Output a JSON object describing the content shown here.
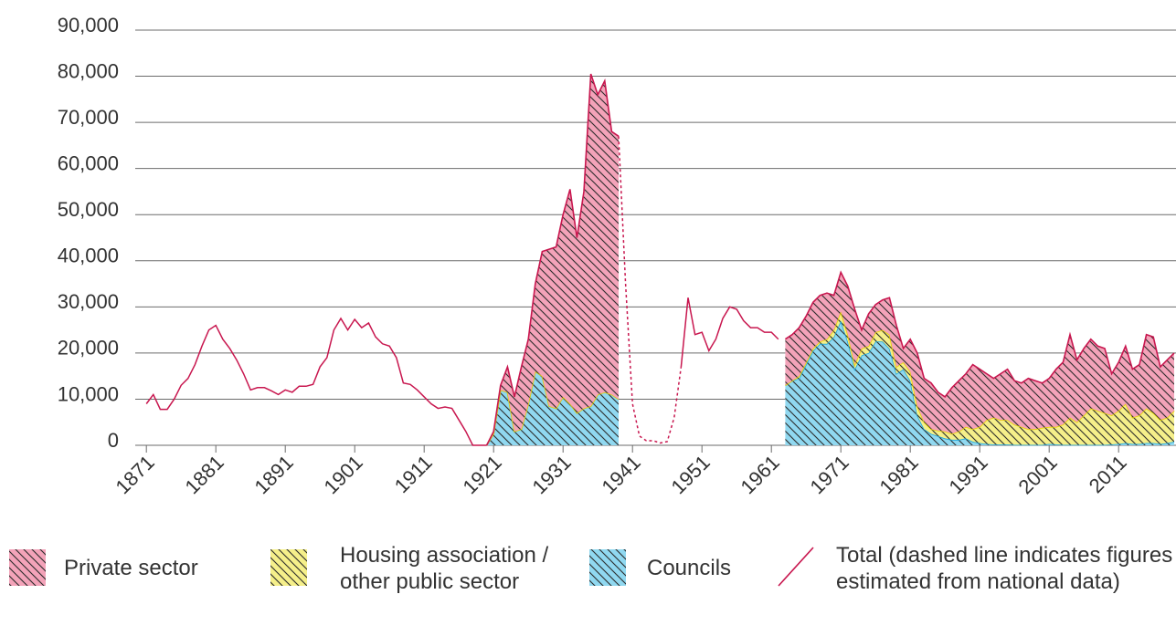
{
  "chart_data": {
    "type": "stacked-area",
    "x": [
      1871,
      1872,
      1873,
      1874,
      1875,
      1876,
      1877,
      1878,
      1879,
      1880,
      1881,
      1882,
      1883,
      1884,
      1885,
      1886,
      1887,
      1888,
      1889,
      1890,
      1891,
      1892,
      1893,
      1894,
      1895,
      1896,
      1897,
      1898,
      1899,
      1900,
      1901,
      1902,
      1903,
      1904,
      1905,
      1906,
      1907,
      1908,
      1909,
      1910,
      1911,
      1912,
      1913,
      1914,
      1915,
      1916,
      1917,
      1918,
      1919,
      1920,
      1921,
      1922,
      1923,
      1924,
      1925,
      1926,
      1927,
      1928,
      1929,
      1930,
      1931,
      1932,
      1933,
      1934,
      1935,
      1936,
      1937,
      1938,
      1939,
      1940,
      1941,
      1942,
      1943,
      1944,
      1945,
      1946,
      1947,
      1948,
      1949,
      1950,
      1951,
      1952,
      1953,
      1954,
      1955,
      1956,
      1957,
      1958,
      1959,
      1960,
      1961,
      1962,
      1963,
      1964,
      1965,
      1966,
      1967,
      1968,
      1969,
      1970,
      1971,
      1972,
      1973,
      1974,
      1975,
      1976,
      1977,
      1978,
      1979,
      1980,
      1981,
      1982,
      1983,
      1984,
      1985,
      1986,
      1987,
      1988,
      1989,
      1990,
      1991,
      1992,
      1993,
      1994,
      1995,
      1996,
      1997,
      1998,
      1999,
      2000,
      2001,
      2002,
      2003,
      2004,
      2005,
      2006,
      2007,
      2008,
      2009,
      2010,
      2011,
      2012,
      2013,
      2014,
      2015,
      2016,
      2017,
      2018,
      2019
    ],
    "series": [
      {
        "name": "Private sector",
        "type": "area",
        "color": "#f3a3b9",
        "line_color": "#c8174f",
        "values": [
          null,
          null,
          null,
          null,
          null,
          null,
          null,
          null,
          null,
          null,
          null,
          null,
          null,
          null,
          null,
          null,
          null,
          null,
          null,
          null,
          null,
          null,
          null,
          null,
          null,
          null,
          null,
          null,
          null,
          null,
          null,
          null,
          null,
          null,
          null,
          null,
          null,
          null,
          null,
          null,
          null,
          null,
          null,
          null,
          null,
          null,
          null,
          null,
          null,
          0,
          500,
          1000,
          5500,
          7500,
          13500,
          14000,
          19000,
          27000,
          34000,
          35000,
          39500,
          46500,
          38000,
          47000,
          72000,
          65000,
          67500,
          57000,
          57000,
          null,
          null,
          null,
          null,
          null,
          null,
          null,
          null,
          null,
          null,
          null,
          null,
          null,
          null,
          null,
          null,
          null,
          null,
          null,
          null,
          null,
          null,
          null,
          10000,
          10000,
          10500,
          10000,
          10000,
          10000,
          10000,
          7500,
          8500,
          10500,
          12000,
          4000,
          7000,
          6000,
          6500,
          8000,
          9000,
          3000,
          7000,
          11500,
          9500,
          10000,
          8300,
          7500,
          10000,
          11000,
          11500,
          14000,
          12500,
          10000,
          8500,
          10000,
          11000,
          9500,
          9500,
          11000,
          10500,
          9700,
          10500,
          12500,
          13500,
          18000,
          13500,
          14500,
          15000,
          14000,
          14000,
          9000,
          10500,
          12500,
          10500,
          11000,
          16000,
          16500,
          11500,
          12500,
          12500
        ]
      },
      {
        "name": "Housing association / other public sector",
        "type": "area",
        "color": "#f5ef8a",
        "line_color": "#e6d400",
        "values": [
          null,
          null,
          null,
          null,
          null,
          null,
          null,
          null,
          null,
          null,
          null,
          null,
          null,
          null,
          null,
          null,
          null,
          null,
          null,
          null,
          null,
          null,
          null,
          null,
          null,
          null,
          null,
          null,
          null,
          null,
          null,
          null,
          null,
          null,
          null,
          null,
          null,
          null,
          null,
          null,
          null,
          null,
          null,
          null,
          null,
          null,
          null,
          null,
          null,
          0,
          0,
          0,
          0,
          0,
          0,
          0,
          0,
          0,
          0,
          0,
          0,
          0,
          0,
          0,
          0,
          0,
          0,
          0,
          0,
          null,
          null,
          null,
          null,
          null,
          null,
          null,
          null,
          null,
          null,
          null,
          null,
          null,
          null,
          null,
          null,
          null,
          null,
          null,
          null,
          null,
          null,
          null,
          0,
          0,
          500,
          500,
          500,
          500,
          1000,
          1500,
          2000,
          1500,
          1000,
          1500,
          1500,
          2000,
          2500,
          3000,
          1500,
          1500,
          2000,
          2000,
          1500,
          1000,
          1200,
          1500,
          1300,
          1800,
          2500,
          2700,
          3500,
          5200,
          5800,
          5300,
          5300,
          4400,
          3900,
          3400,
          3400,
          3700,
          3700,
          3800,
          4400,
          5900,
          4900,
          6400,
          7900,
          7400,
          6900,
          6300,
          7200,
          8500,
          5700,
          6200,
          7500,
          6500,
          5200,
          5500,
          6700
        ]
      },
      {
        "name": "Councils",
        "type": "area",
        "color": "#90d8f0",
        "line_color": "#1ba6db",
        "values": [
          null,
          null,
          null,
          null,
          null,
          null,
          null,
          null,
          null,
          null,
          null,
          null,
          null,
          null,
          null,
          null,
          null,
          null,
          null,
          null,
          null,
          null,
          null,
          null,
          null,
          null,
          null,
          null,
          null,
          null,
          null,
          null,
          null,
          null,
          null,
          null,
          null,
          null,
          null,
          null,
          null,
          null,
          null,
          null,
          null,
          null,
          null,
          null,
          null,
          0,
          2500,
          12000,
          11500,
          3000,
          3500,
          9000,
          16000,
          15000,
          8500,
          8000,
          10500,
          9000,
          7000,
          8000,
          8500,
          11000,
          11500,
          11000,
          10000,
          null,
          null,
          null,
          null,
          null,
          null,
          null,
          null,
          null,
          null,
          null,
          null,
          null,
          null,
          null,
          null,
          null,
          null,
          null,
          null,
          null,
          null,
          null,
          13000,
          14000,
          14500,
          17500,
          20500,
          22000,
          22000,
          23500,
          27000,
          22500,
          16500,
          19500,
          20000,
          22500,
          22500,
          21000,
          15500,
          16500,
          14000,
          6500,
          3500,
          2500,
          2000,
          1500,
          1200,
          1200,
          1500,
          800,
          500,
          300,
          200,
          200,
          200,
          100,
          100,
          100,
          100,
          100,
          300,
          200,
          100,
          100,
          100,
          100,
          100,
          100,
          100,
          200,
          300,
          500,
          300,
          300,
          500,
          500,
          300,
          500,
          800
        ]
      },
      {
        "name": "Total (dashed line indicates figures estimated from national data)",
        "type": "line",
        "color": "#c8174f",
        "values": [
          9000,
          11000,
          7800,
          7800,
          10000,
          13000,
          14500,
          17500,
          21500,
          25000,
          26000,
          23000,
          21000,
          18500,
          15500,
          12000,
          12500,
          12500,
          11800,
          11000,
          12000,
          11500,
          12800,
          12800,
          13200,
          17000,
          19000,
          25000,
          27500,
          25000,
          27300,
          25500,
          26500,
          23500,
          22000,
          21500,
          19000,
          13500,
          13200,
          12000,
          10500,
          9000,
          8000,
          8300,
          8000,
          5500,
          3000,
          0,
          0,
          0,
          null,
          null,
          null,
          null,
          null,
          null,
          null,
          null,
          null,
          null,
          null,
          null,
          null,
          null,
          null,
          null,
          null,
          null,
          null,
          null,
          null,
          null,
          null,
          null,
          null,
          null,
          null,
          17000,
          32000,
          24000,
          24500,
          20500,
          23000,
          27500,
          30000,
          29500,
          27000,
          25500,
          25500,
          24500,
          24500,
          23000,
          null,
          null,
          null,
          null,
          null,
          null,
          null,
          null,
          null,
          null,
          null,
          null,
          null,
          null,
          null,
          null,
          null,
          null,
          null,
          null,
          null,
          null,
          null,
          null,
          null,
          null,
          null,
          null,
          null,
          null,
          null,
          null,
          null,
          null,
          null,
          null,
          null,
          null,
          null,
          null,
          null,
          null,
          null,
          null,
          null,
          null,
          null,
          null,
          null,
          null,
          null,
          null,
          null,
          null,
          null,
          null,
          null
        ],
        "estimated_values": [
          null,
          null,
          null,
          null,
          null,
          null,
          null,
          null,
          null,
          null,
          null,
          null,
          null,
          null,
          null,
          null,
          null,
          null,
          null,
          null,
          null,
          null,
          null,
          null,
          null,
          null,
          null,
          null,
          null,
          null,
          null,
          null,
          null,
          null,
          null,
          null,
          null,
          null,
          null,
          null,
          null,
          null,
          null,
          null,
          null,
          null,
          null,
          null,
          null,
          null,
          null,
          null,
          null,
          null,
          null,
          null,
          null,
          null,
          null,
          null,
          null,
          null,
          null,
          null,
          null,
          null,
          null,
          null,
          67000,
          35000,
          9000,
          2000,
          1000,
          1000,
          500,
          800,
          6000,
          17000,
          null,
          null,
          null,
          null,
          null,
          null,
          null,
          null,
          null,
          null,
          null,
          null,
          null,
          null,
          null,
          null,
          null,
          null,
          null,
          null,
          null,
          null,
          null,
          null,
          null,
          null,
          null,
          null,
          null,
          null,
          null,
          null,
          null,
          null,
          null,
          null,
          null,
          null,
          null,
          null,
          null,
          null,
          null,
          null,
          null,
          null,
          null,
          null,
          null,
          null,
          null,
          null,
          null,
          null,
          null,
          null,
          null,
          null,
          null,
          null,
          null
        ]
      }
    ],
    "xlim": [
      1869,
      2019
    ],
    "xticks": [
      1871,
      1881,
      1891,
      1901,
      1911,
      1921,
      1931,
      1941,
      1951,
      1961,
      1971,
      1981,
      1991,
      2001,
      2011
    ],
    "ylim": [
      0,
      90000
    ],
    "yticks": [
      0,
      {
        "value": 10000,
        "label": "10,000"
      },
      {
        "value": 20000,
        "label": "20,000"
      },
      {
        "value": 30000,
        "label": "30,000"
      },
      {
        "value": 40000,
        "label": "40,000"
      },
      {
        "value": 50000,
        "label": "50,000"
      },
      {
        "value": 60000,
        "label": "60,000"
      },
      {
        "value": 70000,
        "label": "70,000"
      },
      {
        "value": 80000,
        "label": "80,000"
      },
      {
        "value": 90000,
        "label": "90,000"
      }
    ],
    "grid": true,
    "hatch": true,
    "legend": "bottom"
  }
}
